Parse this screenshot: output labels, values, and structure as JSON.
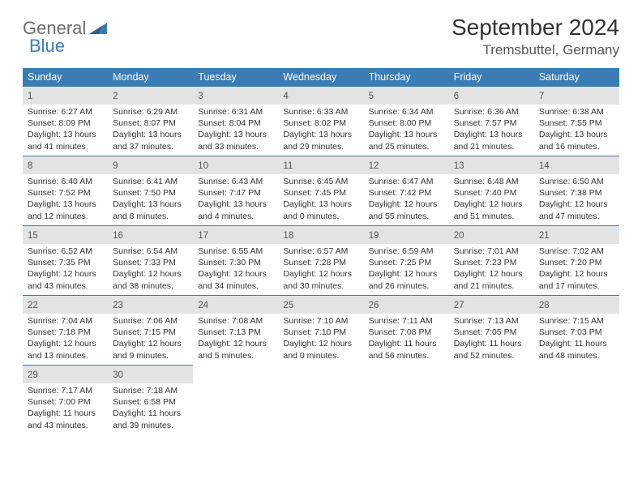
{
  "brand": {
    "word1": "General",
    "word2": "Blue"
  },
  "title": "September 2024",
  "location": "Tremsbuttel, Germany",
  "colors": {
    "header_bg": "#3a7db5",
    "header_text": "#ffffff",
    "daynum_bg": "#e3e3e3",
    "border": "#3a7db5",
    "text": "#333333",
    "logo_grey": "#6b6b6b",
    "logo_blue": "#3a7db5"
  },
  "weekdays": [
    "Sunday",
    "Monday",
    "Tuesday",
    "Wednesday",
    "Thursday",
    "Friday",
    "Saturday"
  ],
  "weeks": [
    [
      {
        "n": "1",
        "sr": "6:27 AM",
        "ss": "8:09 PM",
        "dl": "13 hours and 41 minutes."
      },
      {
        "n": "2",
        "sr": "6:29 AM",
        "ss": "8:07 PM",
        "dl": "13 hours and 37 minutes."
      },
      {
        "n": "3",
        "sr": "6:31 AM",
        "ss": "8:04 PM",
        "dl": "13 hours and 33 minutes."
      },
      {
        "n": "4",
        "sr": "6:33 AM",
        "ss": "8:02 PM",
        "dl": "13 hours and 29 minutes."
      },
      {
        "n": "5",
        "sr": "6:34 AM",
        "ss": "8:00 PM",
        "dl": "13 hours and 25 minutes."
      },
      {
        "n": "6",
        "sr": "6:36 AM",
        "ss": "7:57 PM",
        "dl": "13 hours and 21 minutes."
      },
      {
        "n": "7",
        "sr": "6:38 AM",
        "ss": "7:55 PM",
        "dl": "13 hours and 16 minutes."
      }
    ],
    [
      {
        "n": "8",
        "sr": "6:40 AM",
        "ss": "7:52 PM",
        "dl": "13 hours and 12 minutes."
      },
      {
        "n": "9",
        "sr": "6:41 AM",
        "ss": "7:50 PM",
        "dl": "13 hours and 8 minutes."
      },
      {
        "n": "10",
        "sr": "6:43 AM",
        "ss": "7:47 PM",
        "dl": "13 hours and 4 minutes."
      },
      {
        "n": "11",
        "sr": "6:45 AM",
        "ss": "7:45 PM",
        "dl": "13 hours and 0 minutes."
      },
      {
        "n": "12",
        "sr": "6:47 AM",
        "ss": "7:42 PM",
        "dl": "12 hours and 55 minutes."
      },
      {
        "n": "13",
        "sr": "6:48 AM",
        "ss": "7:40 PM",
        "dl": "12 hours and 51 minutes."
      },
      {
        "n": "14",
        "sr": "6:50 AM",
        "ss": "7:38 PM",
        "dl": "12 hours and 47 minutes."
      }
    ],
    [
      {
        "n": "15",
        "sr": "6:52 AM",
        "ss": "7:35 PM",
        "dl": "12 hours and 43 minutes."
      },
      {
        "n": "16",
        "sr": "6:54 AM",
        "ss": "7:33 PM",
        "dl": "12 hours and 38 minutes."
      },
      {
        "n": "17",
        "sr": "6:55 AM",
        "ss": "7:30 PM",
        "dl": "12 hours and 34 minutes."
      },
      {
        "n": "18",
        "sr": "6:57 AM",
        "ss": "7:28 PM",
        "dl": "12 hours and 30 minutes."
      },
      {
        "n": "19",
        "sr": "6:59 AM",
        "ss": "7:25 PM",
        "dl": "12 hours and 26 minutes."
      },
      {
        "n": "20",
        "sr": "7:01 AM",
        "ss": "7:23 PM",
        "dl": "12 hours and 21 minutes."
      },
      {
        "n": "21",
        "sr": "7:02 AM",
        "ss": "7:20 PM",
        "dl": "12 hours and 17 minutes."
      }
    ],
    [
      {
        "n": "22",
        "sr": "7:04 AM",
        "ss": "7:18 PM",
        "dl": "12 hours and 13 minutes."
      },
      {
        "n": "23",
        "sr": "7:06 AM",
        "ss": "7:15 PM",
        "dl": "12 hours and 9 minutes."
      },
      {
        "n": "24",
        "sr": "7:08 AM",
        "ss": "7:13 PM",
        "dl": "12 hours and 5 minutes."
      },
      {
        "n": "25",
        "sr": "7:10 AM",
        "ss": "7:10 PM",
        "dl": "12 hours and 0 minutes."
      },
      {
        "n": "26",
        "sr": "7:11 AM",
        "ss": "7:08 PM",
        "dl": "11 hours and 56 minutes."
      },
      {
        "n": "27",
        "sr": "7:13 AM",
        "ss": "7:05 PM",
        "dl": "11 hours and 52 minutes."
      },
      {
        "n": "28",
        "sr": "7:15 AM",
        "ss": "7:03 PM",
        "dl": "11 hours and 48 minutes."
      }
    ],
    [
      {
        "n": "29",
        "sr": "7:17 AM",
        "ss": "7:00 PM",
        "dl": "11 hours and 43 minutes."
      },
      {
        "n": "30",
        "sr": "7:18 AM",
        "ss": "6:58 PM",
        "dl": "11 hours and 39 minutes."
      },
      null,
      null,
      null,
      null,
      null
    ]
  ],
  "labels": {
    "sunrise": "Sunrise:",
    "sunset": "Sunset:",
    "daylight": "Daylight:"
  }
}
